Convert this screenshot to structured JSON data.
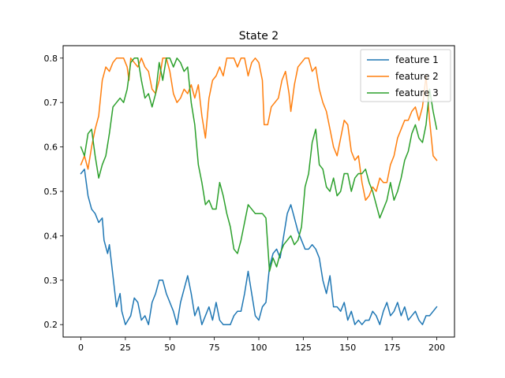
{
  "chart_data": {
    "type": "line",
    "title": "State 2",
    "xlabel": "",
    "ylabel": "",
    "xlim": [
      -10,
      210
    ],
    "ylim": [
      0.172,
      0.828
    ],
    "xticks": [
      0,
      25,
      50,
      75,
      100,
      125,
      150,
      175,
      200
    ],
    "yticks": [
      0.2,
      0.3,
      0.4,
      0.5,
      0.6,
      0.7,
      0.8
    ],
    "xtick_labels": [
      "0",
      "25",
      "50",
      "75",
      "100",
      "125",
      "150",
      "175",
      "200"
    ],
    "ytick_labels": [
      "0.2",
      "0.3",
      "0.4",
      "0.5",
      "0.6",
      "0.7",
      "0.8"
    ],
    "legend_position": "top-right",
    "grid": false,
    "series": [
      {
        "name": "feature 1",
        "color": "#1f77b4",
        "points": [
          [
            0,
            0.54
          ],
          [
            2,
            0.55
          ],
          [
            4,
            0.49
          ],
          [
            6,
            0.46
          ],
          [
            8,
            0.45
          ],
          [
            10,
            0.43
          ],
          [
            12,
            0.44
          ],
          [
            13,
            0.39
          ],
          [
            15,
            0.36
          ],
          [
            16,
            0.38
          ],
          [
            18,
            0.31
          ],
          [
            20,
            0.24
          ],
          [
            22,
            0.27
          ],
          [
            23,
            0.23
          ],
          [
            25,
            0.2
          ],
          [
            28,
            0.22
          ],
          [
            30,
            0.26
          ],
          [
            32,
            0.25
          ],
          [
            34,
            0.21
          ],
          [
            36,
            0.22
          ],
          [
            38,
            0.2
          ],
          [
            40,
            0.25
          ],
          [
            42,
            0.27
          ],
          [
            44,
            0.3
          ],
          [
            46,
            0.3
          ],
          [
            48,
            0.27
          ],
          [
            50,
            0.25
          ],
          [
            52,
            0.23
          ],
          [
            54,
            0.2
          ],
          [
            56,
            0.25
          ],
          [
            58,
            0.28
          ],
          [
            60,
            0.31
          ],
          [
            62,
            0.27
          ],
          [
            64,
            0.22
          ],
          [
            66,
            0.24
          ],
          [
            68,
            0.2
          ],
          [
            70,
            0.22
          ],
          [
            72,
            0.24
          ],
          [
            74,
            0.21
          ],
          [
            76,
            0.25
          ],
          [
            78,
            0.21
          ],
          [
            80,
            0.2
          ],
          [
            82,
            0.2
          ],
          [
            84,
            0.2
          ],
          [
            86,
            0.22
          ],
          [
            88,
            0.23
          ],
          [
            90,
            0.23
          ],
          [
            92,
            0.27
          ],
          [
            94,
            0.32
          ],
          [
            96,
            0.27
          ],
          [
            98,
            0.22
          ],
          [
            100,
            0.21
          ],
          [
            102,
            0.24
          ],
          [
            104,
            0.25
          ],
          [
            106,
            0.33
          ],
          [
            108,
            0.36
          ],
          [
            110,
            0.37
          ],
          [
            112,
            0.35
          ],
          [
            114,
            0.4
          ],
          [
            116,
            0.45
          ],
          [
            118,
            0.47
          ],
          [
            120,
            0.44
          ],
          [
            122,
            0.41
          ],
          [
            124,
            0.39
          ],
          [
            126,
            0.37
          ],
          [
            128,
            0.37
          ],
          [
            130,
            0.38
          ],
          [
            132,
            0.37
          ],
          [
            134,
            0.35
          ],
          [
            136,
            0.3
          ],
          [
            138,
            0.27
          ],
          [
            140,
            0.31
          ],
          [
            142,
            0.24
          ],
          [
            144,
            0.24
          ],
          [
            146,
            0.23
          ],
          [
            148,
            0.25
          ],
          [
            150,
            0.21
          ],
          [
            152,
            0.23
          ],
          [
            154,
            0.2
          ],
          [
            156,
            0.21
          ],
          [
            158,
            0.2
          ],
          [
            160,
            0.21
          ],
          [
            162,
            0.21
          ],
          [
            164,
            0.23
          ],
          [
            166,
            0.22
          ],
          [
            168,
            0.2
          ],
          [
            170,
            0.23
          ],
          [
            172,
            0.25
          ],
          [
            174,
            0.22
          ],
          [
            176,
            0.23
          ],
          [
            178,
            0.25
          ],
          [
            180,
            0.22
          ],
          [
            182,
            0.24
          ],
          [
            184,
            0.21
          ],
          [
            186,
            0.22
          ],
          [
            188,
            0.23
          ],
          [
            190,
            0.21
          ],
          [
            192,
            0.2
          ],
          [
            194,
            0.22
          ],
          [
            196,
            0.22
          ],
          [
            198,
            0.23
          ],
          [
            200,
            0.24
          ]
        ]
      },
      {
        "name": "feature 2",
        "color": "#ff7f0e",
        "points": [
          [
            0,
            0.56
          ],
          [
            2,
            0.58
          ],
          [
            4,
            0.55
          ],
          [
            6,
            0.6
          ],
          [
            8,
            0.64
          ],
          [
            10,
            0.67
          ],
          [
            12,
            0.75
          ],
          [
            14,
            0.78
          ],
          [
            16,
            0.77
          ],
          [
            18,
            0.79
          ],
          [
            20,
            0.8
          ],
          [
            22,
            0.8
          ],
          [
            24,
            0.8
          ],
          [
            26,
            0.78
          ],
          [
            27,
            0.75
          ],
          [
            28,
            0.8
          ],
          [
            30,
            0.79
          ],
          [
            32,
            0.78
          ],
          [
            34,
            0.8
          ],
          [
            36,
            0.78
          ],
          [
            38,
            0.77
          ],
          [
            40,
            0.73
          ],
          [
            42,
            0.72
          ],
          [
            44,
            0.75
          ],
          [
            46,
            0.8
          ],
          [
            48,
            0.8
          ],
          [
            50,
            0.77
          ],
          [
            52,
            0.72
          ],
          [
            54,
            0.7
          ],
          [
            56,
            0.71
          ],
          [
            58,
            0.73
          ],
          [
            60,
            0.72
          ],
          [
            62,
            0.74
          ],
          [
            64,
            0.71
          ],
          [
            66,
            0.74
          ],
          [
            68,
            0.67
          ],
          [
            70,
            0.62
          ],
          [
            72,
            0.71
          ],
          [
            74,
            0.75
          ],
          [
            76,
            0.76
          ],
          [
            78,
            0.78
          ],
          [
            80,
            0.76
          ],
          [
            82,
            0.8
          ],
          [
            84,
            0.8
          ],
          [
            86,
            0.8
          ],
          [
            88,
            0.78
          ],
          [
            90,
            0.8
          ],
          [
            92,
            0.8
          ],
          [
            94,
            0.76
          ],
          [
            96,
            0.79
          ],
          [
            98,
            0.8
          ],
          [
            100,
            0.79
          ],
          [
            102,
            0.75
          ],
          [
            103,
            0.65
          ],
          [
            105,
            0.65
          ],
          [
            107,
            0.69
          ],
          [
            109,
            0.7
          ],
          [
            111,
            0.71
          ],
          [
            113,
            0.75
          ],
          [
            115,
            0.77
          ],
          [
            117,
            0.72
          ],
          [
            118,
            0.68
          ],
          [
            120,
            0.74
          ],
          [
            122,
            0.78
          ],
          [
            124,
            0.79
          ],
          [
            126,
            0.8
          ],
          [
            128,
            0.8
          ],
          [
            130,
            0.77
          ],
          [
            132,
            0.78
          ],
          [
            134,
            0.73
          ],
          [
            136,
            0.7
          ],
          [
            138,
            0.68
          ],
          [
            140,
            0.64
          ],
          [
            142,
            0.6
          ],
          [
            144,
            0.58
          ],
          [
            146,
            0.62
          ],
          [
            148,
            0.66
          ],
          [
            150,
            0.65
          ],
          [
            152,
            0.59
          ],
          [
            154,
            0.57
          ],
          [
            156,
            0.58
          ],
          [
            158,
            0.52
          ],
          [
            160,
            0.48
          ],
          [
            162,
            0.49
          ],
          [
            164,
            0.51
          ],
          [
            166,
            0.5
          ],
          [
            168,
            0.53
          ],
          [
            170,
            0.52
          ],
          [
            172,
            0.52
          ],
          [
            174,
            0.56
          ],
          [
            176,
            0.58
          ],
          [
            178,
            0.62
          ],
          [
            180,
            0.64
          ],
          [
            182,
            0.66
          ],
          [
            184,
            0.66
          ],
          [
            186,
            0.68
          ],
          [
            188,
            0.69
          ],
          [
            190,
            0.66
          ],
          [
            192,
            0.69
          ],
          [
            194,
            0.76
          ],
          [
            196,
            0.66
          ],
          [
            198,
            0.58
          ],
          [
            200,
            0.57
          ]
        ]
      },
      {
        "name": "feature 3",
        "color": "#2ca02c",
        "points": [
          [
            0,
            0.6
          ],
          [
            2,
            0.58
          ],
          [
            4,
            0.63
          ],
          [
            6,
            0.64
          ],
          [
            8,
            0.58
          ],
          [
            10,
            0.53
          ],
          [
            12,
            0.56
          ],
          [
            14,
            0.58
          ],
          [
            16,
            0.63
          ],
          [
            18,
            0.69
          ],
          [
            20,
            0.7
          ],
          [
            22,
            0.71
          ],
          [
            24,
            0.7
          ],
          [
            26,
            0.73
          ],
          [
            28,
            0.79
          ],
          [
            30,
            0.8
          ],
          [
            32,
            0.8
          ],
          [
            34,
            0.75
          ],
          [
            36,
            0.71
          ],
          [
            38,
            0.72
          ],
          [
            40,
            0.69
          ],
          [
            42,
            0.72
          ],
          [
            44,
            0.79
          ],
          [
            46,
            0.75
          ],
          [
            48,
            0.8
          ],
          [
            50,
            0.8
          ],
          [
            52,
            0.78
          ],
          [
            54,
            0.8
          ],
          [
            56,
            0.79
          ],
          [
            58,
            0.77
          ],
          [
            60,
            0.78
          ],
          [
            62,
            0.7
          ],
          [
            64,
            0.65
          ],
          [
            66,
            0.56
          ],
          [
            68,
            0.52
          ],
          [
            70,
            0.47
          ],
          [
            72,
            0.48
          ],
          [
            74,
            0.46
          ],
          [
            76,
            0.46
          ],
          [
            78,
            0.52
          ],
          [
            80,
            0.49
          ],
          [
            82,
            0.45
          ],
          [
            84,
            0.42
          ],
          [
            86,
            0.37
          ],
          [
            88,
            0.36
          ],
          [
            90,
            0.39
          ],
          [
            92,
            0.43
          ],
          [
            94,
            0.47
          ],
          [
            96,
            0.46
          ],
          [
            98,
            0.45
          ],
          [
            100,
            0.45
          ],
          [
            102,
            0.45
          ],
          [
            104,
            0.44
          ],
          [
            106,
            0.32
          ],
          [
            108,
            0.35
          ],
          [
            110,
            0.33
          ],
          [
            112,
            0.36
          ],
          [
            114,
            0.38
          ],
          [
            116,
            0.39
          ],
          [
            118,
            0.4
          ],
          [
            120,
            0.38
          ],
          [
            122,
            0.39
          ],
          [
            124,
            0.42
          ],
          [
            126,
            0.51
          ],
          [
            128,
            0.54
          ],
          [
            130,
            0.61
          ],
          [
            132,
            0.64
          ],
          [
            134,
            0.56
          ],
          [
            136,
            0.55
          ],
          [
            138,
            0.51
          ],
          [
            140,
            0.5
          ],
          [
            142,
            0.53
          ],
          [
            144,
            0.49
          ],
          [
            146,
            0.5
          ],
          [
            148,
            0.54
          ],
          [
            150,
            0.54
          ],
          [
            152,
            0.5
          ],
          [
            154,
            0.53
          ],
          [
            156,
            0.54
          ],
          [
            158,
            0.54
          ],
          [
            160,
            0.55
          ],
          [
            162,
            0.52
          ],
          [
            164,
            0.5
          ],
          [
            166,
            0.47
          ],
          [
            168,
            0.44
          ],
          [
            170,
            0.46
          ],
          [
            172,
            0.48
          ],
          [
            174,
            0.52
          ],
          [
            176,
            0.48
          ],
          [
            178,
            0.5
          ],
          [
            180,
            0.53
          ],
          [
            182,
            0.57
          ],
          [
            184,
            0.59
          ],
          [
            186,
            0.63
          ],
          [
            188,
            0.65
          ],
          [
            190,
            0.62
          ],
          [
            192,
            0.61
          ],
          [
            194,
            0.65
          ],
          [
            196,
            0.73
          ],
          [
            198,
            0.68
          ],
          [
            200,
            0.64
          ]
        ]
      }
    ]
  }
}
